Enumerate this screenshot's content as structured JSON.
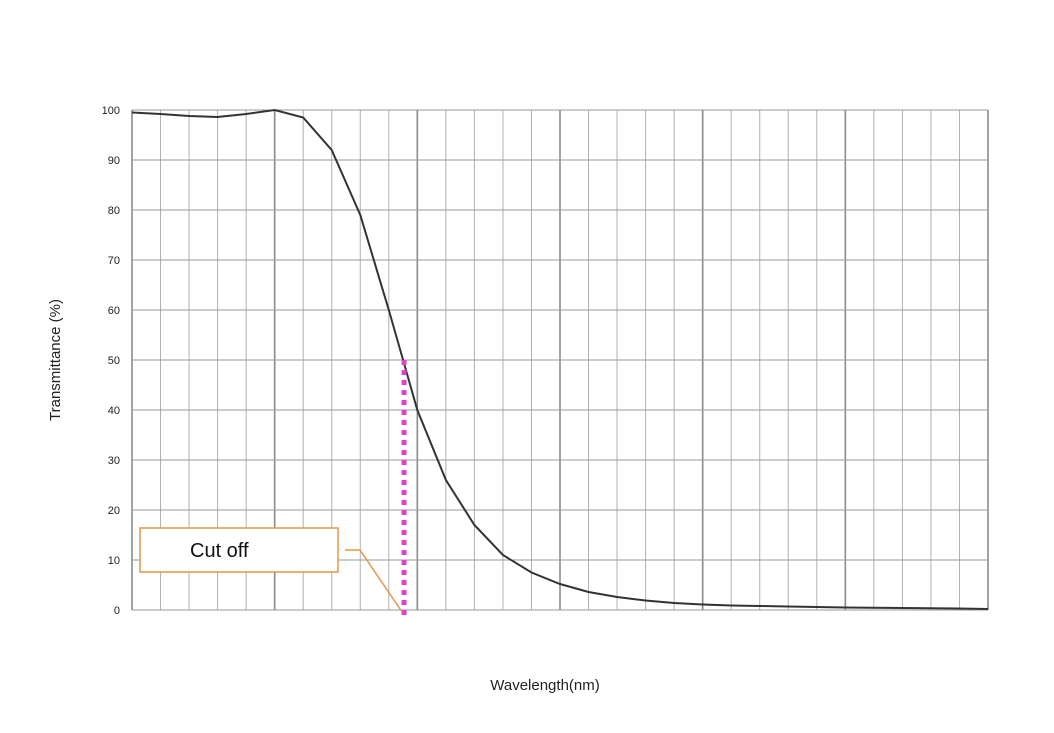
{
  "chart_data": {
    "type": "line",
    "title": "",
    "xlabel": "Wavelength(nm)",
    "ylabel": "Transmittance (%)",
    "ylim": [
      0,
      100
    ],
    "yticks": [
      0,
      10,
      20,
      30,
      40,
      50,
      60,
      70,
      80,
      90,
      100
    ],
    "xlim": [
      0,
      30
    ],
    "grid": true,
    "legend": "none",
    "series": [
      {
        "x": [
          0,
          1,
          2,
          3,
          4,
          5,
          6,
          7,
          8,
          9,
          9.5,
          10,
          11,
          12,
          13,
          14,
          15,
          16,
          17,
          18,
          19,
          20,
          21,
          22,
          23,
          24,
          25,
          26,
          27,
          28,
          29,
          30
        ],
        "values": [
          99.5,
          99.2,
          98.8,
          98.6,
          99.2,
          100,
          98.5,
          92,
          79,
          60,
          50,
          40,
          26,
          17,
          11,
          7.5,
          5.2,
          3.6,
          2.6,
          1.9,
          1.4,
          1.1,
          0.9,
          0.8,
          0.7,
          0.6,
          0.5,
          0.45,
          0.4,
          0.35,
          0.3,
          0.2
        ],
        "color": "#333333"
      }
    ],
    "annotations": [
      {
        "text": "Cut off",
        "x": 9.5,
        "y": 50,
        "line_color": "#e040d0",
        "box_color": "#e8944a"
      }
    ]
  }
}
